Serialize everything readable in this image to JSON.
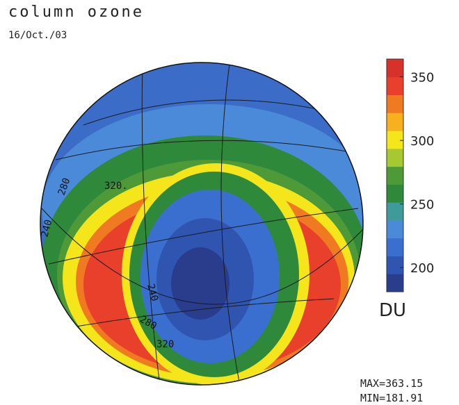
{
  "title": "column ozone",
  "date": "16/Oct./03",
  "colorbar": {
    "range": [
      181,
      364
    ],
    "ticks": [
      200,
      250,
      300,
      350
    ],
    "unit": "DU",
    "colors": [
      "#2a3c8c",
      "#2f55b0",
      "#3a6fcf",
      "#4a8ad8",
      "#3f9a9a",
      "#2e8a3a",
      "#4f9a38",
      "#a8c832",
      "#f4e61a",
      "#f7b01e",
      "#f07a22",
      "#e8402a",
      "#d8302a"
    ]
  },
  "stats": {
    "max": "MAX=363.15",
    "min": "MIN=181.91"
  },
  "contour_labels": [
    "320.",
    "280",
    "240",
    "240",
    "280",
    "320"
  ]
}
